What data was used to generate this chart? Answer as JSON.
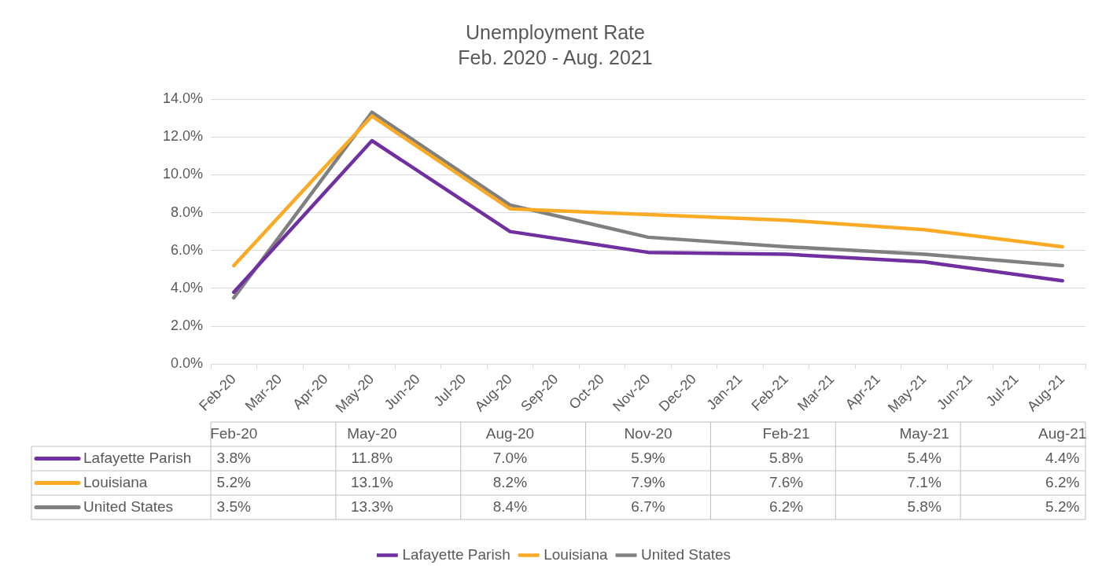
{
  "chart_data": {
    "type": "line",
    "title": "Unemployment Rate",
    "subtitle": "Feb. 2020 - Aug. 2021",
    "categories": [
      "Feb-20",
      "Mar-20",
      "Apr-20",
      "May-20",
      "Jun-20",
      "Jul-20",
      "Aug-20",
      "Sep-20",
      "Oct-20",
      "Nov-20",
      "Dec-20",
      "Jan-21",
      "Feb-21",
      "Mar-21",
      "Apr-21",
      "May-21",
      "Jun-21",
      "Jul-21",
      "Aug-21"
    ],
    "series": [
      {
        "name": "Lafayette Parish",
        "color": "#7030a0",
        "values": [
          3.8,
          null,
          null,
          11.8,
          null,
          null,
          7.0,
          null,
          null,
          5.9,
          null,
          null,
          5.8,
          null,
          null,
          5.4,
          null,
          null,
          4.4
        ],
        "value_labels": [
          "3.8%",
          null,
          null,
          "11.8%",
          null,
          null,
          "7.0%",
          null,
          null,
          "5.9%",
          null,
          null,
          "5.8%",
          null,
          null,
          "5.4%",
          null,
          null,
          "4.4%"
        ]
      },
      {
        "name": "Louisiana",
        "color": "#fbaa25",
        "values": [
          5.2,
          null,
          null,
          13.1,
          null,
          null,
          8.2,
          null,
          null,
          7.9,
          null,
          null,
          7.6,
          null,
          null,
          7.1,
          null,
          null,
          6.2
        ],
        "value_labels": [
          "5.2%",
          null,
          null,
          "13.1%",
          null,
          null,
          "8.2%",
          null,
          null,
          "7.9%",
          null,
          null,
          "7.6%",
          null,
          null,
          "7.1%",
          null,
          null,
          "6.2%"
        ]
      },
      {
        "name": "United States",
        "color": "#808080",
        "values": [
          3.5,
          null,
          null,
          13.3,
          null,
          null,
          8.4,
          null,
          null,
          6.7,
          null,
          null,
          6.2,
          null,
          null,
          5.8,
          null,
          null,
          5.2
        ],
        "value_labels": [
          "3.5%",
          null,
          null,
          "13.3%",
          null,
          null,
          "8.4%",
          null,
          null,
          "6.7%",
          null,
          null,
          "6.2%",
          null,
          null,
          "5.8%",
          null,
          null,
          "5.2%"
        ]
      }
    ],
    "ylim": [
      0,
      14
    ],
    "yticks": [
      {
        "value": 0,
        "label": "0.0%"
      },
      {
        "value": 2,
        "label": "2.0%"
      },
      {
        "value": 4,
        "label": "4.0%"
      },
      {
        "value": 6,
        "label": "6.0%"
      },
      {
        "value": 8,
        "label": "8.0%"
      },
      {
        "value": 10,
        "label": "10.0%"
      },
      {
        "value": 12,
        "label": "12.0%"
      },
      {
        "value": 14,
        "label": "14.0%"
      }
    ],
    "grid": "y",
    "legend": "bottom",
    "marker": "none",
    "line_style": "solid"
  }
}
